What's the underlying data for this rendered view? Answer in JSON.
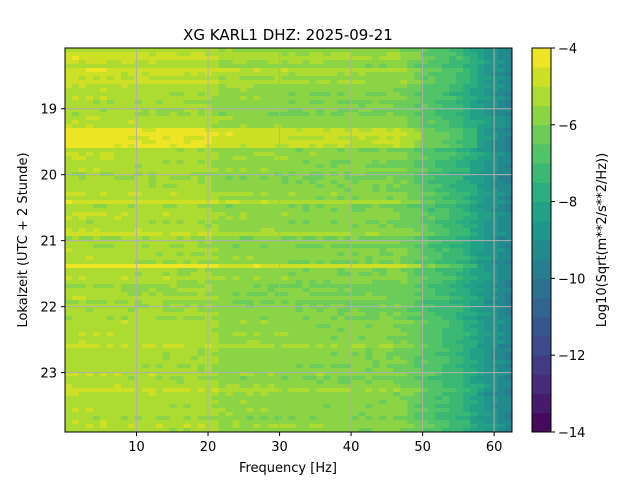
{
  "chart_data": {
    "type": "heatmap",
    "title": "XG KARL1  DHZ: 2025-09-21",
    "xlabel": "Frequency [Hz]",
    "ylabel": "Lokalzeit (UTC + 2 Stunde)",
    "xlim": [
      0.0,
      62.5
    ],
    "ylim_hours": [
      18.08,
      23.9
    ],
    "y_inverted": true,
    "xticks": [
      10,
      20,
      30,
      40,
      50,
      60
    ],
    "yticks": [
      19,
      20,
      21,
      22,
      23
    ],
    "grid": true,
    "colorbar": {
      "label": "Log10(Sqrt(m**2/s**2/Hz))",
      "range": [
        -14,
        -4
      ],
      "ticks": [
        -4,
        -6,
        -8,
        -10,
        -12,
        -14
      ],
      "colormap": "viridis",
      "levels": 20
    },
    "baseline_profile": [
      {
        "freq": 0,
        "value": -5.2
      },
      {
        "freq": 20,
        "value": -5.4
      },
      {
        "freq": 22,
        "value": -5.7
      },
      {
        "freq": 47,
        "value": -6.0
      },
      {
        "freq": 50,
        "value": -6.6
      },
      {
        "freq": 55,
        "value": -7.4
      },
      {
        "freq": 58,
        "value": -8.3
      },
      {
        "freq": 62.5,
        "value": -9.6
      }
    ],
    "high_energy_bands_hours": [
      {
        "time": 18.2,
        "value_offset": 0.5
      },
      {
        "time": 18.45,
        "value_offset": 0.6
      },
      {
        "time": 18.6,
        "value_offset": 0.4
      },
      {
        "time": 19.35,
        "value_offset": 1.1
      },
      {
        "time": 19.45,
        "value_offset": 0.8
      },
      {
        "time": 19.55,
        "value_offset": 1.0
      },
      {
        "time": 20.4,
        "value_offset": 0.5
      },
      {
        "time": 20.9,
        "value_offset": 0.4
      },
      {
        "time": 21.38,
        "value_offset": 1.2
      },
      {
        "time": 22.6,
        "value_offset": 0.6
      },
      {
        "time": 23.3,
        "value_offset": 0.4
      }
    ]
  }
}
